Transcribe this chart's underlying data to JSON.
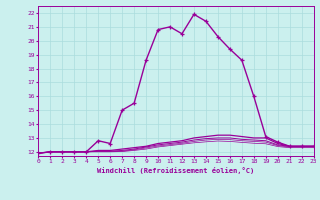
{
  "xlabel": "Windchill (Refroidissement éolien,°C)",
  "bg_color": "#cbf0ee",
  "grid_color": "#aadddd",
  "line_color": "#990099",
  "xmin": 0,
  "xmax": 23,
  "ymin": 11.7,
  "ymax": 22.5,
  "yticks": [
    12,
    13,
    14,
    15,
    16,
    17,
    18,
    19,
    20,
    21,
    22
  ],
  "xticks": [
    0,
    1,
    2,
    3,
    4,
    5,
    6,
    7,
    8,
    9,
    10,
    11,
    12,
    13,
    14,
    15,
    16,
    17,
    18,
    19,
    20,
    21,
    22,
    23
  ],
  "main_x": [
    0,
    1,
    2,
    3,
    4,
    5,
    6,
    7,
    8,
    9,
    10,
    11,
    12,
    13,
    14,
    15,
    16,
    17,
    18,
    19,
    20,
    21,
    22,
    23
  ],
  "main_y": [
    11.9,
    12.0,
    12.0,
    12.0,
    12.0,
    12.8,
    12.6,
    15.0,
    15.5,
    18.6,
    20.8,
    21.0,
    20.5,
    21.9,
    21.4,
    20.3,
    19.4,
    18.6,
    16.0,
    13.1,
    12.7,
    12.4,
    12.4,
    12.4
  ],
  "line2_x": [
    0,
    1,
    2,
    3,
    4,
    5,
    6,
    7,
    8,
    9,
    10,
    11,
    12,
    13,
    14,
    15,
    16,
    17,
    18,
    19,
    20,
    21,
    22,
    23
  ],
  "line2_y": [
    11.9,
    12.0,
    12.0,
    12.0,
    12.0,
    12.1,
    12.1,
    12.2,
    12.3,
    12.4,
    12.6,
    12.7,
    12.8,
    13.0,
    13.1,
    13.2,
    13.2,
    13.1,
    13.0,
    13.0,
    12.6,
    12.4,
    12.4,
    12.4
  ],
  "line3_x": [
    0,
    1,
    2,
    3,
    4,
    5,
    6,
    7,
    8,
    9,
    10,
    11,
    12,
    13,
    14,
    15,
    16,
    17,
    18,
    19,
    20,
    21,
    22,
    23
  ],
  "line3_y": [
    11.9,
    12.0,
    12.0,
    12.0,
    12.0,
    12.05,
    12.05,
    12.1,
    12.2,
    12.35,
    12.5,
    12.6,
    12.7,
    12.85,
    12.95,
    13.0,
    13.0,
    12.9,
    12.85,
    12.8,
    12.5,
    12.4,
    12.4,
    12.4
  ],
  "line4_x": [
    0,
    1,
    2,
    3,
    4,
    5,
    6,
    7,
    8,
    9,
    10,
    11,
    12,
    13,
    14,
    15,
    16,
    17,
    18,
    19,
    20,
    21,
    22,
    23
  ],
  "line4_y": [
    11.9,
    12.0,
    12.0,
    12.0,
    12.0,
    12.02,
    12.02,
    12.05,
    12.15,
    12.28,
    12.42,
    12.52,
    12.62,
    12.75,
    12.85,
    12.9,
    12.88,
    12.8,
    12.75,
    12.7,
    12.45,
    12.35,
    12.35,
    12.35
  ],
  "line5_x": [
    0,
    1,
    2,
    3,
    4,
    5,
    6,
    7,
    8,
    9,
    10,
    11,
    12,
    13,
    14,
    15,
    16,
    17,
    18,
    19,
    20,
    21,
    22,
    23
  ],
  "line5_y": [
    11.9,
    12.0,
    12.0,
    12.0,
    12.0,
    12.0,
    12.0,
    12.02,
    12.1,
    12.2,
    12.35,
    12.45,
    12.55,
    12.65,
    12.72,
    12.78,
    12.75,
    12.68,
    12.62,
    12.58,
    12.38,
    12.3,
    12.3,
    12.3
  ]
}
